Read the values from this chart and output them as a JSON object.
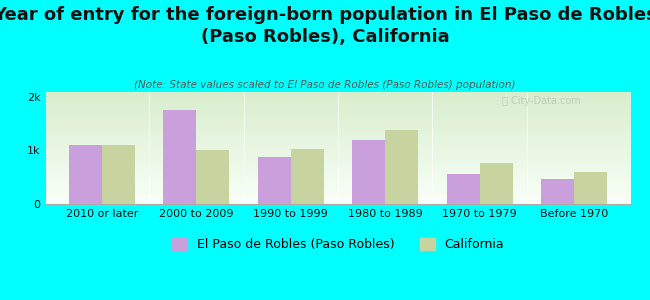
{
  "title": "Year of entry for the foreign-born population in El Paso de Robles\n(Paso Robles), California",
  "subtitle": "(Note: State values scaled to El Paso de Robles (Paso Robles) population)",
  "categories": [
    "2010 or later",
    "2000 to 2009",
    "1990 to 1999",
    "1980 to 1989",
    "1970 to 1979",
    "Before 1970"
  ],
  "city_values": [
    1100,
    1750,
    880,
    1200,
    560,
    460
  ],
  "state_values": [
    1100,
    1000,
    1020,
    1380,
    760,
    590
  ],
  "city_color": "#c9a0dc",
  "state_color": "#c8d4a0",
  "bg_color": "#00ffff",
  "plot_bg_top": "#d8edcc",
  "plot_bg_bottom": "#f8fff8",
  "legend_city": "El Paso de Robles (Paso Robles)",
  "legend_state": "California",
  "yticks": [
    0,
    1000,
    2000
  ],
  "ytick_labels": [
    "0",
    "1k",
    "2k"
  ],
  "ylim": [
    0,
    2100
  ],
  "bar_width": 0.35,
  "title_fontsize": 13,
  "subtitle_fontsize": 7.5,
  "axis_fontsize": 8,
  "legend_fontsize": 9
}
